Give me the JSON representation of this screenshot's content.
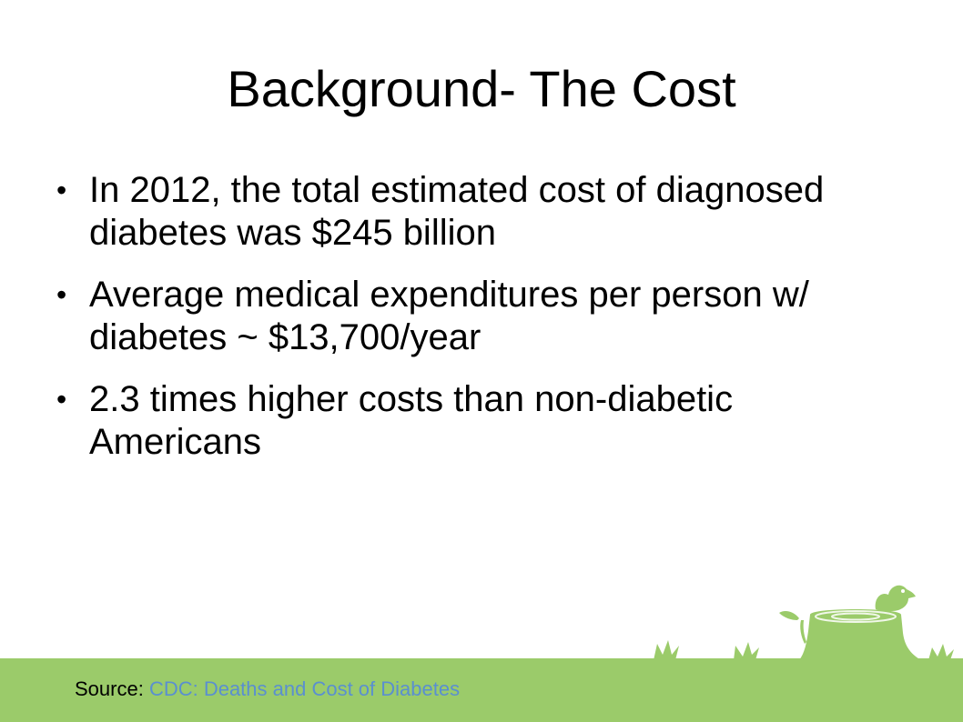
{
  "slide": {
    "title": "Background- The Cost",
    "bullets": [
      {
        "line1": "In 2012, the total estimated cost of diagnosed",
        "line2": "diabetes was $245 billion"
      },
      {
        "line1": "Average medical expenditures per person w/",
        "line2": "diabetes ~ $13,700/year"
      },
      {
        "line1": "2.3 times higher costs than non-diabetic",
        "line2": "Americans"
      }
    ],
    "bullet_symbol": "•",
    "footer": {
      "source_label": "Source: ",
      "link_text": "CDC: Deaths and Cost of Diabetes"
    }
  },
  "colors": {
    "grass": "#9bcb6a",
    "link": "#5a8fd0",
    "text": "#000000",
    "background": "#ffffff"
  },
  "icons": [
    "grass-tuft-icon",
    "tree-stump-icon",
    "bird-icon",
    "sprout-icon"
  ]
}
